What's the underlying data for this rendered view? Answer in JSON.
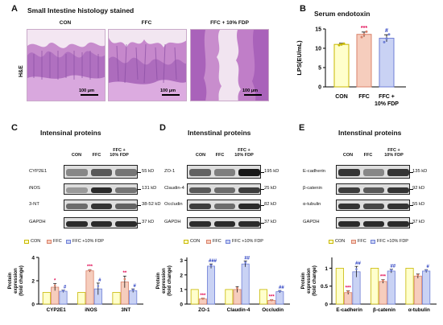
{
  "panel_letters": {
    "a": "A",
    "b": "B",
    "c": "C",
    "d": "D",
    "e": "E"
  },
  "colors": {
    "con": "#ffffcc",
    "ffc": "#f6cdbd",
    "ffc_fdp": "#c9d2f4",
    "con_edge": "#c8b800",
    "ffc_edge": "#d9826a",
    "ffc_fdp_edge": "#6f7fd6",
    "star": "#e0004d",
    "hash": "#2238c0"
  },
  "panel_a": {
    "title": "Small Intestine histology stained",
    "stain_label": "H&E",
    "groups": [
      "CON",
      "FFC",
      "FFC + 10% FDP"
    ],
    "scale_label": "100 μm"
  },
  "panel_b": {
    "title": "Serum endotoxin",
    "ylabel": "LPS(EU/mL)",
    "yticks": [
      "0",
      "5",
      "10",
      "15"
    ],
    "xlabels": [
      "CON",
      "FFC",
      "FFC +",
      "10% FDP"
    ],
    "star": "***",
    "hash": "#"
  },
  "panel_c": {
    "title": "Intensinal proteins",
    "columns": [
      "CON",
      "FFC",
      "FFC +",
      "10% FDP"
    ],
    "rows": [
      "CYP2E1",
      "iNOS",
      "3-NT",
      "GAPDH"
    ],
    "kd": [
      "55 kD",
      "131 kD",
      "38-52 kD",
      "37 kD"
    ],
    "xlabels": [
      "CYP2E1",
      "iNOS",
      "3NT"
    ],
    "ylabel": [
      "Protein",
      "expression",
      "(fold change)"
    ],
    "yticks": [
      "0",
      "2",
      "4"
    ],
    "stars": [
      "*",
      "***",
      "**"
    ],
    "hashes": [
      "#",
      "#",
      "#"
    ]
  },
  "panel_d": {
    "title": "Intenstinal proteins",
    "columns": [
      "CON",
      "FFC",
      "FFC +",
      "10% FDP"
    ],
    "rows": [
      "ZO-1",
      "Claudin-4",
      "Occludin",
      "GAPDH"
    ],
    "kd": [
      "195 kD",
      "25 kD",
      "82 kD",
      "37 kD"
    ],
    "xlabels": [
      "ZO-1",
      "Claudin-4",
      "Occludin"
    ],
    "ylabel": [
      "Protein",
      "expression",
      "(fold change)"
    ],
    "yticks": [
      "0",
      "1",
      "2",
      "3"
    ],
    "stars": [
      "***",
      "",
      "***"
    ],
    "hashes": [
      "###",
      "##",
      "##"
    ]
  },
  "panel_e": {
    "title": "Intenstinal proteins",
    "columns": [
      "CON",
      "FFC",
      "FFC +",
      "10% FDP"
    ],
    "rows": [
      "E-cadherin",
      "β-catenin",
      "α-tubulin",
      "GAPDH"
    ],
    "kd": [
      "135 kD",
      "92 kD",
      "55 kD",
      "37 kD"
    ],
    "xlabels": [
      "E-cadherin",
      "β-catenin",
      "α-tubulin"
    ],
    "ylabel": [
      "Protein",
      "expression",
      "(fold change)"
    ],
    "yticks": [
      "0",
      "0.5",
      "1"
    ],
    "stars": [
      "***",
      "***",
      ""
    ],
    "hashes": [
      "##",
      "##",
      "#"
    ]
  },
  "legend": {
    "con": "CON",
    "ffc": "FFC",
    "ffc_fdp": "FFC +10% FDP"
  },
  "chart_data": [
    {
      "type": "bar",
      "panel": "B",
      "title": "Serum endotoxin",
      "ylabel": "LPS(EU/mL)",
      "categories": [
        "CON",
        "FFC",
        "FFC + 10% FDP"
      ],
      "values": [
        11.0,
        13.6,
        12.6
      ],
      "errors": [
        0.3,
        0.6,
        0.9
      ],
      "points": [
        [
          10.8,
          11.0,
          11.2
        ],
        [
          12.9,
          13.6,
          14.3
        ],
        [
          11.6,
          12.5,
          13.6
        ]
      ],
      "ylim": [
        0,
        15
      ],
      "annotations": [
        "",
        "***",
        "#"
      ]
    },
    {
      "type": "bar",
      "panel": "C",
      "ylabel": "Protein expression (fold change)",
      "categories": [
        "CYP2E1",
        "iNOS",
        "3NT"
      ],
      "series": [
        {
          "name": "CON",
          "values": [
            1.0,
            1.0,
            1.0
          ],
          "errors": [
            0,
            0,
            0
          ]
        },
        {
          "name": "FFC",
          "values": [
            1.45,
            2.85,
            1.9
          ],
          "errors": [
            0.3,
            0.1,
            0.5
          ]
        },
        {
          "name": "FFC +10% FDP",
          "values": [
            1.1,
            1.3,
            1.15
          ],
          "errors": [
            0.1,
            0.5,
            0.15
          ]
        }
      ],
      "ylim": [
        0,
        4
      ]
    },
    {
      "type": "bar",
      "panel": "D",
      "ylabel": "Protein expression (fold change)",
      "categories": [
        "ZO-1",
        "Claudin-4",
        "Occludin"
      ],
      "series": [
        {
          "name": "CON",
          "values": [
            1.0,
            1.0,
            1.0
          ],
          "errors": [
            0,
            0,
            0
          ]
        },
        {
          "name": "FFC",
          "values": [
            0.35,
            1.0,
            0.25
          ],
          "errors": [
            0.05,
            0.2,
            0.04
          ]
        },
        {
          "name": "FFC +10% FDP",
          "values": [
            2.6,
            2.75,
            0.85
          ],
          "errors": [
            0.15,
            0.2,
            0.08
          ]
        }
      ],
      "ylim": [
        0,
        3.2
      ]
    },
    {
      "type": "bar",
      "panel": "E",
      "ylabel": "Protein expression (fold change)",
      "categories": [
        "E-cadherin",
        "β-catenin",
        "α-tubulin"
      ],
      "series": [
        {
          "name": "CON",
          "values": [
            1.0,
            1.0,
            1.0
          ],
          "errors": [
            0,
            0,
            0
          ]
        },
        {
          "name": "FFC",
          "values": [
            0.32,
            0.63,
            0.78
          ],
          "errors": [
            0.05,
            0.05,
            0.06
          ]
        },
        {
          "name": "FFC +10% FDP",
          "values": [
            0.9,
            0.92,
            0.92
          ],
          "errors": [
            0.15,
            0.05,
            0.04
          ]
        }
      ],
      "ylim": [
        0,
        1.3
      ]
    }
  ]
}
